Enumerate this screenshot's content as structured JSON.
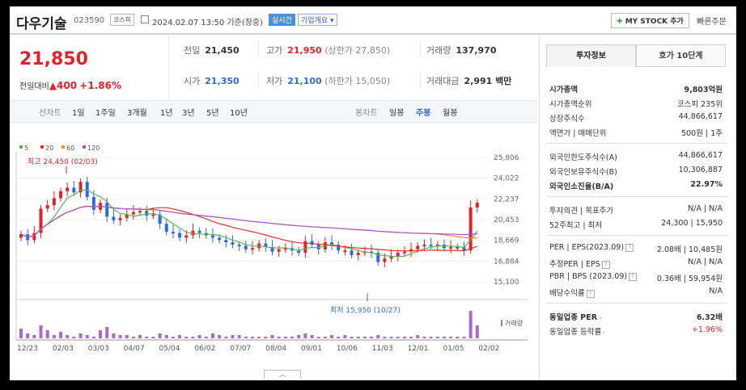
{
  "header": {
    "stock_name": "다우기술",
    "stock_code": "023590",
    "market": "코스피",
    "datetime": "2024.02.07 13:50 기준(장중)",
    "live_label": "실시간",
    "company_info_label": "기업개요",
    "my_stock_label": "MY STOCK 추가",
    "quick_order_label": "빠른주문"
  },
  "price": {
    "current": "21,850",
    "change_label": "전일대비",
    "change": "▲400",
    "change_pct": "+1.86%"
  },
  "summary": {
    "prev_label": "전일",
    "prev": "21,450",
    "high_label": "고가",
    "high": "21,950",
    "high_limit": "(상한가 27,850)",
    "volume_label": "거래량",
    "volume": "137,970",
    "open_label": "시가",
    "open": "21,350",
    "low_label": "저가",
    "low": "21,100",
    "low_limit": "(하한가 15,050)",
    "amount_label": "거래대금",
    "amount": "2,991 백만"
  },
  "toolbar": {
    "line_label": "선차트",
    "line_periods": [
      "1일",
      "1주일",
      "3개월",
      "1년",
      "3년",
      "5년",
      "10년"
    ],
    "candle_label": "봉차트",
    "candle_periods": [
      "일봉",
      "주봉",
      "월봉"
    ],
    "candle_selected": "주봉"
  },
  "chart_data": {
    "type": "candlestick",
    "legend": [
      "5",
      "20",
      "60",
      "120"
    ],
    "legend_colors": [
      "#5ab55a",
      "#e0312b",
      "#f08a24",
      "#a05ad0"
    ],
    "price_ticks": [
      "25,806",
      "24,022",
      "22,237",
      "20,453",
      "18,669",
      "16,884",
      "15,100"
    ],
    "ylim": [
      15100,
      25806
    ],
    "x_labels": [
      "12/23",
      "02/03",
      "03/03",
      "04/07",
      "05/04",
      "06/02",
      "07/07",
      "08/04",
      "09/01",
      "10/06",
      "11/03",
      "12/01",
      "01/05",
      "02/02"
    ],
    "high_annotation": "최고 24,450 (02/03)",
    "low_annotation": "최저 15,950 (10/27)",
    "volume_label": "거래량",
    "closes": [
      19200,
      18700,
      19300,
      21400,
      21700,
      22300,
      22900,
      23200,
      22800,
      23700,
      22400,
      21300,
      21900,
      20700,
      20400,
      20600,
      20900,
      21100,
      21200,
      20800,
      20900,
      20100,
      19400,
      19300,
      18900,
      19100,
      19500,
      19300,
      19100,
      18900,
      18700,
      18500,
      18300,
      18200,
      17900,
      18000,
      18400,
      18100,
      17700,
      17900,
      18000,
      17800,
      17600,
      18600,
      18300,
      17900,
      18500,
      18300,
      17800,
      17800,
      17400,
      17600,
      17700,
      17600,
      16800,
      17100,
      17300,
      17600,
      17700,
      17900,
      18200,
      18300,
      18200,
      18300,
      18000,
      18100,
      18100,
      17800,
      21500,
      21900
    ],
    "volume": [
      6,
      3,
      2,
      8,
      5,
      2,
      4,
      2,
      1,
      3,
      2,
      1,
      5,
      7,
      3,
      2,
      2,
      1,
      2,
      1,
      1,
      3,
      2,
      1,
      2,
      1,
      1,
      2,
      1,
      3,
      2,
      1,
      2,
      2,
      1,
      1,
      1,
      1,
      2,
      1,
      1,
      1,
      2,
      3,
      2,
      1,
      1,
      2,
      1,
      2,
      1,
      1,
      1,
      1,
      2,
      1,
      1,
      1,
      1,
      1,
      2,
      1,
      1,
      1,
      1,
      1,
      1,
      1,
      17,
      8
    ]
  },
  "right": {
    "tab_invest": "투자정보",
    "tab_quote": "호가 10단계",
    "market_cap_label": "시가총액",
    "market_cap": "9,803억원",
    "cap_rank_label": "시가총액순위",
    "cap_rank": "코스피 235위",
    "shares_label": "상장주식수",
    "shares": "44,866,617",
    "par_label": "액면가 | 매매단위",
    "par": "500원 | 1주",
    "foreign_limit_label": "외국인한도주식수(A)",
    "foreign_limit": "44,866,617",
    "foreign_hold_label": "외국인보유주식수(B)",
    "foreign_hold": "10,306,887",
    "foreign_ratio_label": "외국인소진율(B/A)",
    "foreign_ratio": "22.97%",
    "opinion_label": "투자의견 | 목표주가",
    "opinion": "N/A | N/A",
    "w52_label": "52주최고 | 최저",
    "w52": "24,300 | 15,950",
    "per_label": "PER | EPS(2023.09)",
    "per": "2.08배 | 10,485원",
    "est_label": "추정PER | EPS",
    "est": "N/A | N/A",
    "pbr_label": "PBR | BPS (2023.09)",
    "pbr": "0.36배 | 59,954원",
    "div_label": "배당수익률",
    "div": "N/A",
    "ind_per_label": "동일업종 PER",
    "ind_per": "6.32배",
    "ind_rate_label": "동일업종 등락률",
    "ind_rate": "+1.96%"
  }
}
